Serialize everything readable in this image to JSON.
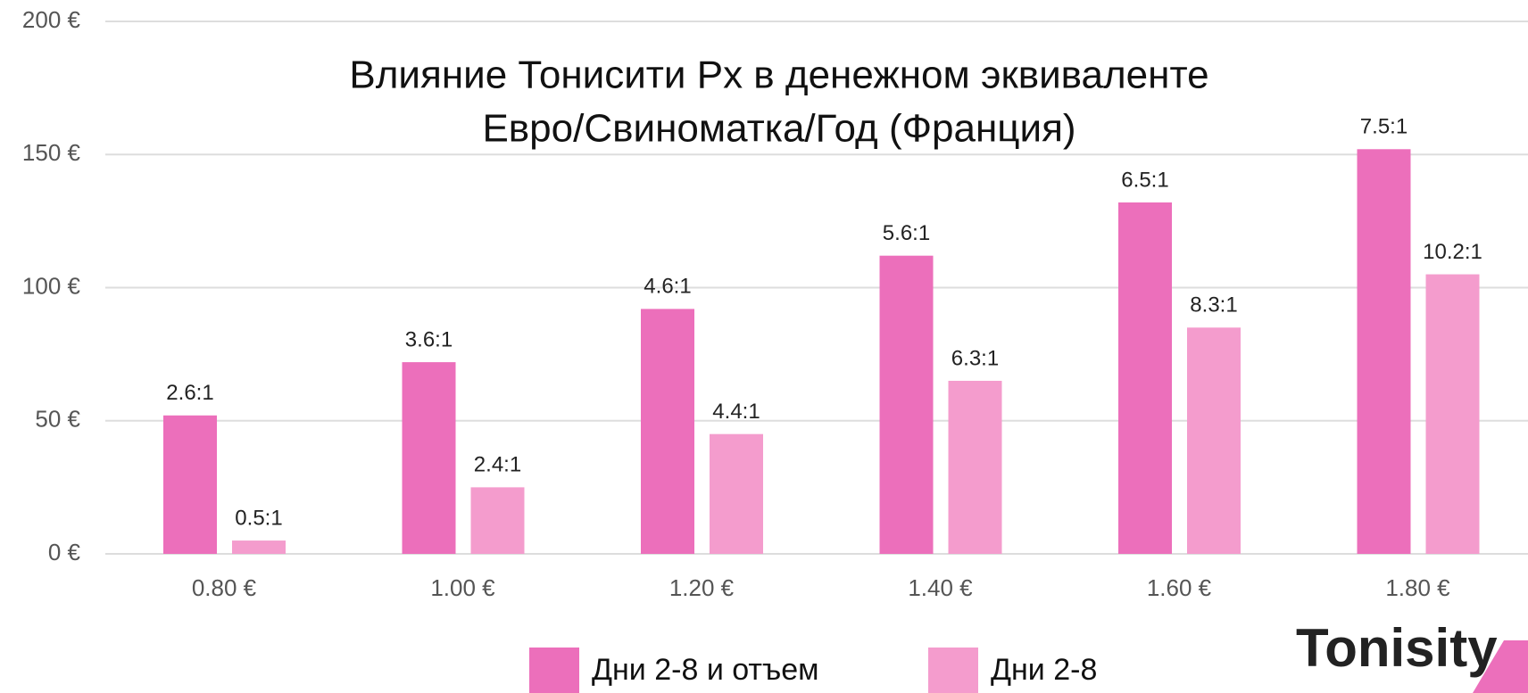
{
  "chart_data": {
    "type": "bar",
    "title": [
      "Влияние Тонисити Px в денежном эквиваленте",
      "Евро/Свиноматка/Год (Франция)"
    ],
    "categories": [
      "0.80 €",
      "1.00 €",
      "1.20 €",
      "1.40 €",
      "1.60 €",
      "1.80 €"
    ],
    "series": [
      {
        "name": "Дни 2-8 и отъем",
        "color": "#ec6fbb",
        "values": [
          52,
          72,
          92,
          112,
          132,
          152
        ],
        "ratio_labels": [
          "2.6:1",
          "3.6:1",
          "4.6:1",
          "5.6:1",
          "6.5:1",
          "7.5:1"
        ]
      },
      {
        "name": "Дни 2-8",
        "color": "#f49ccd",
        "values": [
          5,
          25,
          45,
          65,
          85,
          105
        ],
        "ratio_labels": [
          "0.5:1",
          "2.4:1",
          "4.4:1",
          "6.3:1",
          "8.3:1",
          "10.2:1"
        ]
      }
    ],
    "ylim": [
      0,
      200
    ],
    "yticks": [
      {
        "value": 0,
        "label": "0 €"
      },
      {
        "value": 50,
        "label": "50 €"
      },
      {
        "value": 100,
        "label": "100 €"
      },
      {
        "value": 150,
        "label": "150 €"
      },
      {
        "value": 200,
        "label": "200 €"
      }
    ],
    "grid": true
  },
  "logo": "Tonisity"
}
